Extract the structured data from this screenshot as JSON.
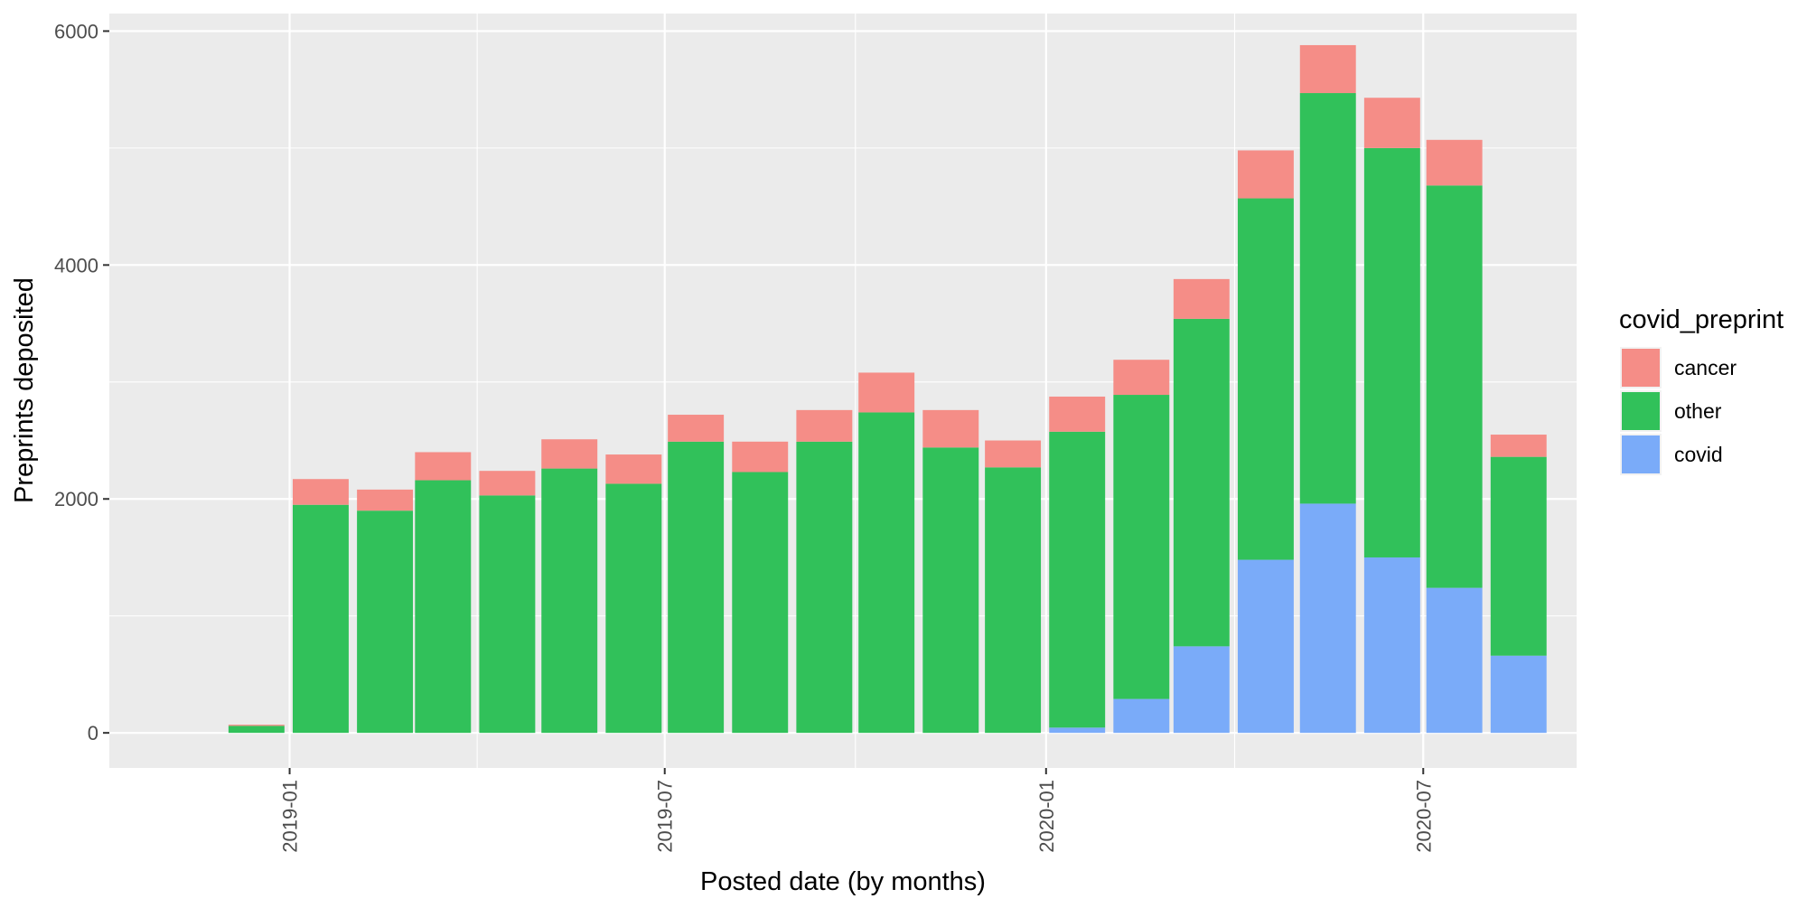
{
  "chart_data": {
    "type": "bar",
    "stacked": true,
    "xlabel": "Posted date (by months)",
    "ylabel": "Preprints deposited",
    "ylim": [
      -300,
      6150
    ],
    "yticks": [
      0,
      2000,
      4000,
      6000
    ],
    "xlim": [
      "2018-10-06",
      "2020-09-13"
    ],
    "xticks": [
      "2019-01-01",
      "2019-07-01",
      "2020-01-01",
      "2020-07-01"
    ],
    "xtick_labels": [
      "2019-01",
      "2019-07",
      "2020-01",
      "2020-07"
    ],
    "grid": true,
    "legend": {
      "title": "covid_preprint",
      "position": "right"
    },
    "categories": [
      "2018-12",
      "2019-01",
      "2019-02",
      "2019-03",
      "2019-04",
      "2019-05",
      "2019-06",
      "2019-07",
      "2019-08",
      "2019-09",
      "2019-10",
      "2019-11",
      "2019-12",
      "2020-01",
      "2020-02",
      "2020-03",
      "2020-04",
      "2020-05",
      "2020-06",
      "2020-07",
      "2020-08"
    ],
    "series": [
      {
        "name": "covid",
        "color": "#7aabf9",
        "values": [
          0,
          0,
          0,
          0,
          0,
          0,
          0,
          0,
          0,
          0,
          0,
          0,
          0,
          45,
          290,
          740,
          1480,
          1960,
          1500,
          1240,
          660
        ]
      },
      {
        "name": "other",
        "color": "#31c15a",
        "values": [
          60,
          1950,
          1900,
          2160,
          2030,
          2260,
          2130,
          2490,
          2230,
          2490,
          2740,
          2440,
          2270,
          2530,
          2600,
          2800,
          3090,
          3510,
          3500,
          3440,
          1700
        ]
      },
      {
        "name": "cancer",
        "color": "#f58d87",
        "values": [
          10,
          220,
          180,
          240,
          210,
          250,
          250,
          230,
          260,
          270,
          340,
          320,
          230,
          300,
          300,
          340,
          410,
          410,
          430,
          390,
          190
        ]
      }
    ]
  }
}
